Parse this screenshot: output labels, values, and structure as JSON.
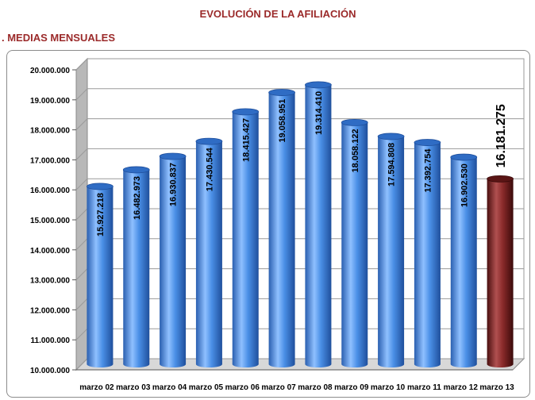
{
  "title": "EVOLUCIÓN DE LA AFILIACIÓN",
  "subtitle": ". MEDIAS MENSUALES",
  "colors": {
    "title": "#9b2a2a",
    "bar": "#3a7dd6",
    "highlight_bar": "#7a2020"
  },
  "chart_data": {
    "type": "bar",
    "categories": [
      "marzo 02",
      "marzo 03",
      "marzo 04",
      "marzo 05",
      "marzo 06",
      "marzo 07",
      "marzo 08",
      "marzo 09",
      "marzo 10",
      "marzo 11",
      "marzo 12",
      "marzo 13"
    ],
    "values": [
      15927218,
      16482973,
      16930837,
      17430544,
      18415427,
      19058951,
      19314410,
      18058122,
      17594808,
      17392754,
      16902530,
      16181275
    ],
    "value_labels": [
      "15.927.218",
      "16.482.973",
      "16.930.837",
      "17.430.544",
      "18.415.427",
      "19.058.951",
      "19.314.410",
      "18.058.122",
      "17.594.808",
      "17.392.754",
      "16.902.530",
      "16.181.275"
    ],
    "highlight_index": 11,
    "ylim": [
      10000000,
      20000000
    ],
    "yticks": [
      10000000,
      11000000,
      12000000,
      13000000,
      14000000,
      15000000,
      16000000,
      17000000,
      18000000,
      19000000,
      20000000
    ],
    "ytick_labels": [
      "10.000.000",
      "11.000.000",
      "12.000.000",
      "13.000.000",
      "14.000.000",
      "15.000.000",
      "16.000.000",
      "17.000.000",
      "18.000.000",
      "19.000.000",
      "20.000.000"
    ],
    "grid": true,
    "xlabel": "",
    "ylabel": ""
  }
}
